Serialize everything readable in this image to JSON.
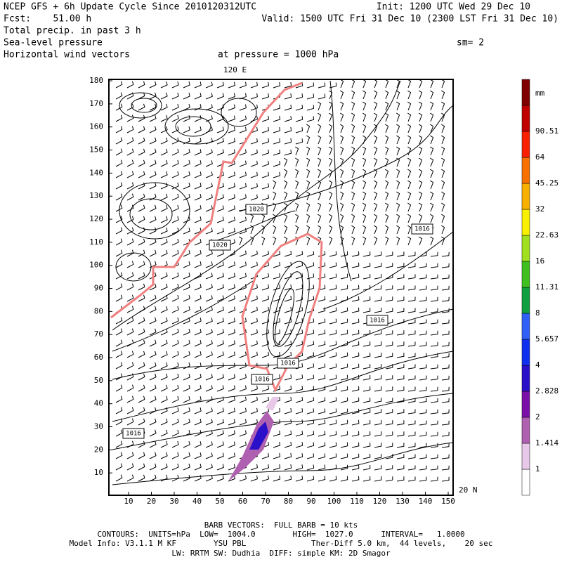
{
  "header": {
    "left": [
      "NCEP GFS + 6h Update Cycle Since 2010120312UTC",
      "Fcst:    51.00 h",
      "Total precip. in past 3 h",
      "Sea-level pressure",
      "Horizontal wind vectors"
    ],
    "init": "Init: 1200 UTC Wed 29 Dec 10",
    "valid": "Valid: 1500 UTC Fri 31 Dec 10 (2300 LST Fri 31 Dec 10)",
    "smoothing": "sm= 2",
    "level": "at pressure = 1000 hPa"
  },
  "map": {
    "lon_label": "120 E",
    "lat_label": "20 N",
    "xticks": [
      10,
      20,
      30,
      40,
      50,
      60,
      70,
      80,
      90,
      100,
      110,
      120,
      130,
      140,
      150
    ],
    "yticks": [
      10,
      20,
      30,
      40,
      50,
      60,
      70,
      80,
      90,
      100,
      110,
      120,
      130,
      140,
      150,
      160,
      170,
      180
    ],
    "contour_labels": [
      "1020",
      "1020",
      "1016",
      "1016",
      "1016",
      "1016",
      "1016"
    ]
  },
  "colorbar": {
    "unit": "mm",
    "labels": [
      "1",
      "1.414",
      "2",
      "2.828",
      "4",
      "5.657",
      "8",
      "11.31",
      "16",
      "22.63",
      "32",
      "45.25",
      "64",
      "90.51"
    ],
    "colors": [
      "#ffffff",
      "#e8c8e8",
      "#b060b0",
      "#7a10a8",
      "#2a10c8",
      "#1030f0",
      "#3060f8",
      "#10a040",
      "#40c020",
      "#a0e020",
      "#f8f000",
      "#f8b000",
      "#f87000",
      "#f82000",
      "#c00000",
      "#800000"
    ]
  },
  "footer": [
    "BARB VECTORS:  FULL BARB = 10 kts",
    "CONTOURS:  UNITS=hPa  LOW=  1004.0        HIGH=  1027.0      INTERVAL=   1.0000",
    "Model Info: V3.1.1 M KF        YSU PBL              Ther-Diff 5.0 km,  44 levels,    20 sec",
    "LW: RRTM SW: Dudhia  DIFF: simple KM: 2D Smagor"
  ]
}
